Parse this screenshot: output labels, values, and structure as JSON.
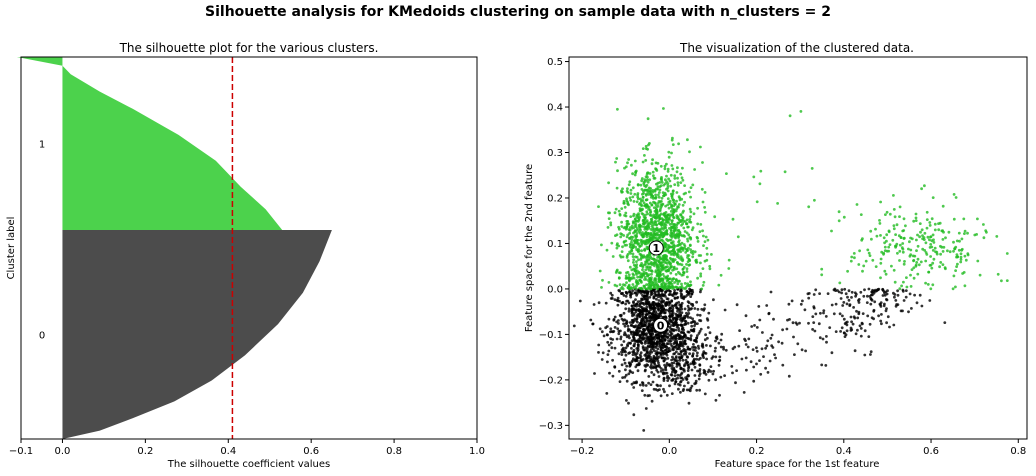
{
  "suptitle": "Silhouette analysis for KMedoids clustering on sample data with n_clusters = 2",
  "colors": {
    "cluster_0": "#333333",
    "cluster_1": "#33cc33",
    "avg_line": "#cc0000",
    "frame": "#000000"
  },
  "chart_data": [
    {
      "type": "area",
      "title": "The silhouette plot for the various clusters.",
      "xlabel": "The silhouette coefficient values",
      "ylabel": "Cluster label",
      "xlim": [
        -0.1,
        1.0
      ],
      "xticks": [
        -0.1,
        0.0,
        0.2,
        0.4,
        0.6,
        0.8,
        1.0
      ],
      "xtick_labels": [
        "−0.1",
        "0.0",
        "0.2",
        "0.4",
        "0.6",
        "0.8",
        "1.0"
      ],
      "grid": false,
      "average_silhouette": 0.41,
      "clusters": [
        {
          "label": "0",
          "color": "#333333",
          "profile": [
            [
              0,
              0.65
            ],
            [
              0.05,
              0.64
            ],
            [
              0.15,
              0.62
            ],
            [
              0.3,
              0.58
            ],
            [
              0.45,
              0.52
            ],
            [
              0.6,
              0.44
            ],
            [
              0.72,
              0.36
            ],
            [
              0.82,
              0.27
            ],
            [
              0.9,
              0.17
            ],
            [
              0.96,
              0.09
            ],
            [
              1,
              0.0
            ]
          ]
        },
        {
          "label": "1",
          "color": "#33cc33",
          "profile": [
            [
              0,
              -0.11
            ],
            [
              0.05,
              0.0
            ],
            [
              0.1,
              0.02
            ],
            [
              0.2,
              0.09
            ],
            [
              0.3,
              0.17
            ],
            [
              0.45,
              0.28
            ],
            [
              0.6,
              0.37
            ],
            [
              0.75,
              0.43
            ],
            [
              0.88,
              0.49
            ],
            [
              1,
              0.53
            ]
          ]
        }
      ]
    },
    {
      "type": "scatter",
      "title": "The visualization of the clustered data.",
      "xlabel": "Feature space for the 1st feature",
      "ylabel": "Feature space for the 2nd feature",
      "xlim": [
        -0.23,
        0.82
      ],
      "ylim": [
        -0.33,
        0.51
      ],
      "xticks": [
        -0.2,
        0.0,
        0.2,
        0.4,
        0.6,
        0.8
      ],
      "xtick_labels": [
        "−0.2",
        "0.0",
        "0.2",
        "0.4",
        "0.6",
        "0.8"
      ],
      "yticks": [
        -0.3,
        -0.2,
        -0.1,
        0.0,
        0.1,
        0.2,
        0.3,
        0.4,
        0.5
      ],
      "ytick_labels": [
        "−0.3",
        "−0.2",
        "−0.1",
        "0.0",
        "0.1",
        "0.2",
        "0.3",
        "0.4",
        "0.5"
      ],
      "grid": false,
      "series": [
        {
          "cluster": "0",
          "color": "#000000",
          "groups": [
            {
              "center": [
                -0.03,
                -0.09
              ],
              "spread": [
                0.05,
                0.055
              ],
              "count": 1400
            },
            {
              "center": [
                0.04,
                -0.17
              ],
              "spread": [
                0.04,
                0.035
              ],
              "count": 160
            },
            {
              "center": [
                0.2,
                -0.13
              ],
              "spread": [
                0.05,
                0.045
              ],
              "count": 60
            },
            {
              "center": [
                0.38,
                -0.06
              ],
              "spread": [
                0.06,
                0.045
              ],
              "count": 110
            },
            {
              "center": [
                0.49,
                -0.02
              ],
              "spread": [
                0.05,
                0.025
              ],
              "count": 90
            }
          ]
        },
        {
          "cluster": "1",
          "color": "#22bb22",
          "groups": [
            {
              "center": [
                -0.03,
                0.11
              ],
              "spread": [
                0.045,
                0.08
              ],
              "count": 1400
            },
            {
              "center": [
                0.57,
                0.09
              ],
              "spread": [
                0.08,
                0.05
              ],
              "count": 260
            },
            {
              "center": [
                0.15,
                0.2
              ],
              "spread": [
                0.1,
                0.1
              ],
              "count": 25
            }
          ]
        }
      ],
      "centers": [
        {
          "label": "0",
          "x": -0.02,
          "y": -0.08
        },
        {
          "label": "1",
          "x": -0.03,
          "y": 0.09
        }
      ]
    }
  ]
}
